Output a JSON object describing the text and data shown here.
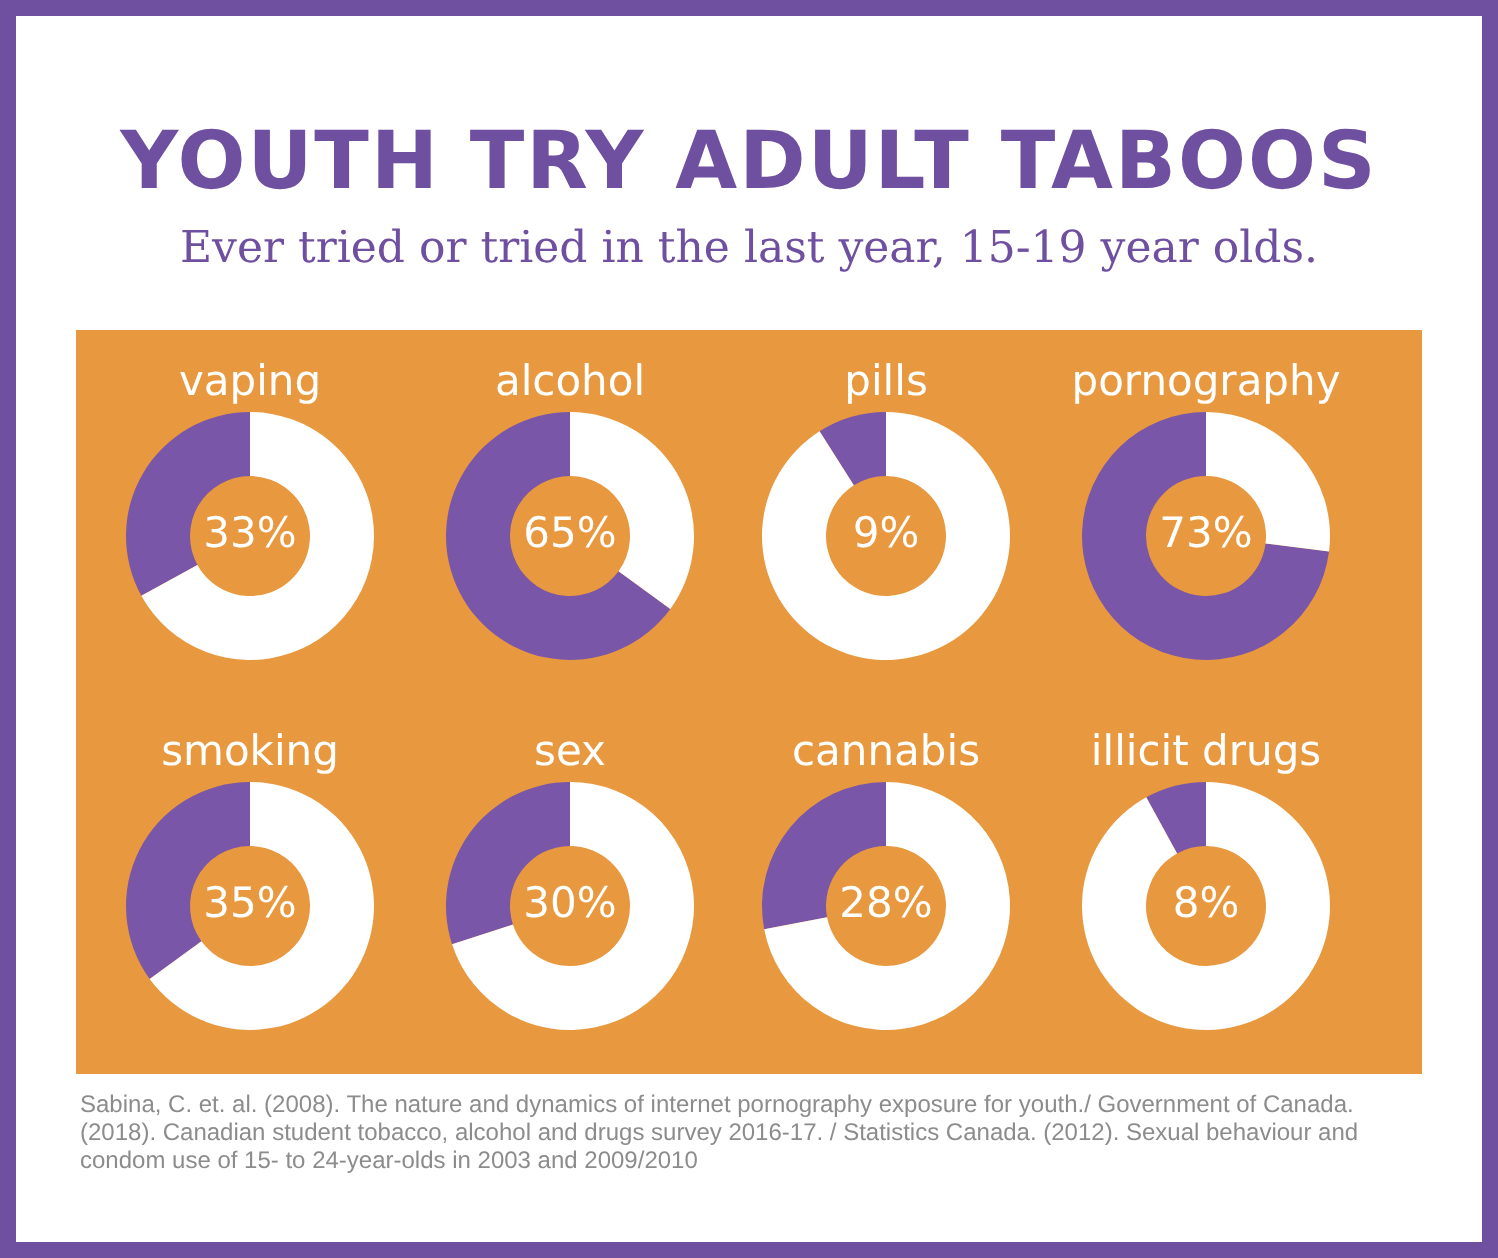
{
  "chart_data": [
    {
      "type": "other",
      "title": "YOUTH TRY ADULT TABOOS",
      "subtitle": "Ever tried or tried in the last year, 15-19 year olds.",
      "annotations": [
        "Sabina, C. et. al. (2008). The nature and dynamics of internet pornography exposure for youth./ Government of Canada. (2018). Canadian student tobacco, alcohol and drugs survey 2016-17. / Statistics Canada. (2012). Sexual behaviour and condom use of 15- to 24-year-olds in 2003 and 2009/2010"
      ]
    },
    {
      "type": "donut",
      "title": "vaping",
      "categories": [
        null,
        null
      ],
      "values": [
        33,
        67
      ],
      "colors": [
        "#7a56a8",
        "#ffffff"
      ],
      "annotations": [
        "33%"
      ]
    },
    {
      "type": "donut",
      "title": "alcohol",
      "categories": [
        null,
        null
      ],
      "values": [
        65,
        35
      ],
      "colors": [
        "#7a56a8",
        "#ffffff"
      ],
      "annotations": [
        "65%"
      ]
    },
    {
      "type": "donut",
      "title": "pills",
      "categories": [
        null,
        null
      ],
      "values": [
        9,
        91
      ],
      "colors": [
        "#7a56a8",
        "#ffffff"
      ],
      "annotations": [
        "9%"
      ]
    },
    {
      "type": "donut",
      "title": "pornography",
      "categories": [
        null,
        null
      ],
      "values": [
        73,
        27
      ],
      "colors": [
        "#7a56a8",
        "#ffffff"
      ],
      "annotations": [
        "73%"
      ]
    },
    {
      "type": "donut",
      "title": "smoking",
      "categories": [
        null,
        null
      ],
      "values": [
        35,
        65
      ],
      "colors": [
        "#7a56a8",
        "#ffffff"
      ],
      "annotations": [
        "35%"
      ]
    },
    {
      "type": "donut",
      "title": "sex",
      "categories": [
        null,
        null
      ],
      "values": [
        30,
        70
      ],
      "colors": [
        "#7a56a8",
        "#ffffff"
      ],
      "annotations": [
        "30%"
      ]
    },
    {
      "type": "donut",
      "title": "cannabis",
      "categories": [
        null,
        null
      ],
      "values": [
        28,
        72
      ],
      "colors": [
        "#7a56a8",
        "#ffffff"
      ],
      "annotations": [
        "28%"
      ]
    },
    {
      "type": "donut",
      "title": "illicit drugs",
      "categories": [
        null,
        null
      ],
      "values": [
        8,
        92
      ],
      "colors": [
        "#7a56a8",
        "#ffffff"
      ],
      "annotations": [
        "8%"
      ]
    }
  ]
}
